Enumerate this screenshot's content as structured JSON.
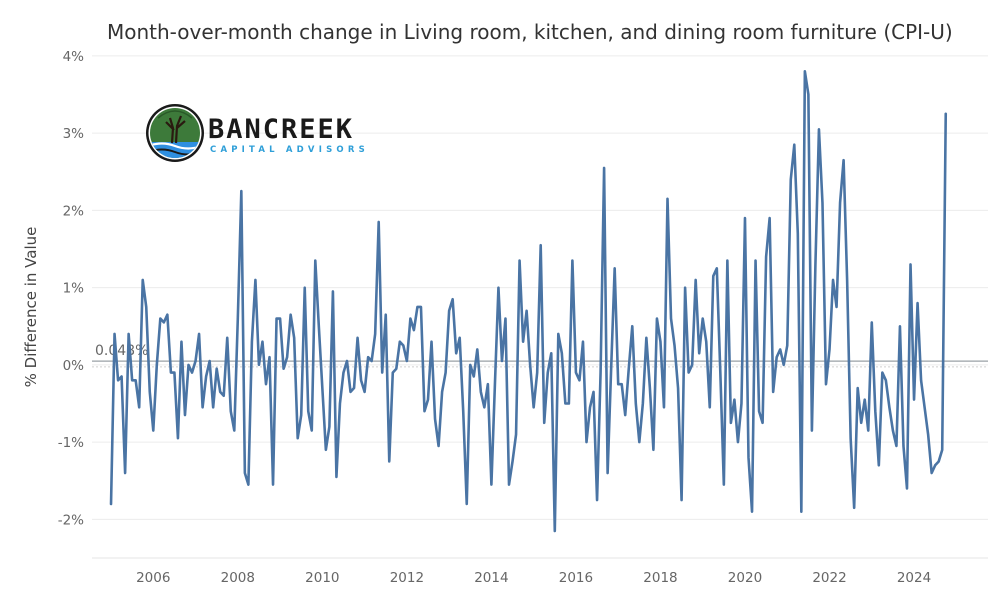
{
  "logo": {
    "name": "BANCREEK",
    "tagline": "CAPITAL ADVISORS"
  },
  "colors": {
    "line": "#4a74a4",
    "reference_line": "#9aa0a6",
    "logo_green": "#3d7a3a",
    "logo_blue": "#2f8fe0"
  },
  "chart_data": {
    "type": "line",
    "title": "Month-over-month change in Living room, kitchen, and dining room furniture (CPI-U)",
    "ylabel": "% Difference in Value",
    "xlabel": "",
    "ylim": [
      -2.5,
      4.05
    ],
    "xlim": [
      2004.55,
      2025.75
    ],
    "yticks": [
      -2,
      -1,
      0,
      1,
      2,
      3,
      4
    ],
    "ytick_labels": [
      "-2%",
      "-1%",
      "0%",
      "1%",
      "2%",
      "3%",
      "4%"
    ],
    "xticks": [
      2006,
      2008,
      2010,
      2012,
      2014,
      2016,
      2018,
      2020,
      2022,
      2024
    ],
    "xtick_labels": [
      "2006",
      "2008",
      "2010",
      "2012",
      "2014",
      "2016",
      "2018",
      "2020",
      "2022",
      "2024"
    ],
    "reference_line": {
      "value": 0.048,
      "label": "0.048%"
    },
    "grid": "horizontal",
    "legend": "none",
    "start": "2005-01",
    "frequency": "monthly",
    "series": [
      {
        "values": [
          -1.8,
          0.4,
          -0.2,
          -0.15,
          -1.4,
          0.4,
          -0.2,
          -0.2,
          -0.55,
          1.1,
          0.75,
          -0.35,
          -0.85,
          0.0,
          0.6,
          0.55,
          0.65,
          -0.1,
          -0.1,
          -0.95,
          0.3,
          -0.65,
          0.0,
          -0.1,
          0.05,
          0.4,
          -0.55,
          -0.15,
          0.05,
          -0.55,
          -0.05,
          -0.35,
          -0.4,
          0.35,
          -0.6,
          -0.85,
          0.6,
          2.25,
          -1.4,
          -1.55,
          0.3,
          1.1,
          0.0,
          0.3,
          -0.25,
          0.1,
          -1.55,
          0.6,
          0.6,
          -0.05,
          0.1,
          0.65,
          0.35,
          -0.95,
          -0.65,
          1.0,
          -0.6,
          -0.85,
          1.35,
          0.5,
          -0.3,
          -1.1,
          -0.8,
          0.95,
          -1.45,
          -0.5,
          -0.1,
          0.05,
          -0.35,
          -0.3,
          0.35,
          -0.2,
          -0.35,
          0.1,
          0.05,
          0.4,
          1.85,
          -0.1,
          0.65,
          -1.25,
          -0.1,
          -0.05,
          0.3,
          0.25,
          0.05,
          0.6,
          0.45,
          0.75,
          0.75,
          -0.6,
          -0.45,
          0.3,
          -0.7,
          -1.05,
          -0.35,
          -0.1,
          0.7,
          0.85,
          0.15,
          0.35,
          -0.6,
          -1.8,
          0.0,
          -0.15,
          0.2,
          -0.35,
          -0.55,
          -0.25,
          -1.55,
          -0.25,
          1.0,
          0.05,
          0.6,
          -1.55,
          -1.25,
          -0.9,
          1.35,
          0.3,
          0.7,
          0.0,
          -0.55,
          -0.1,
          1.55,
          -0.75,
          -0.1,
          0.15,
          -2.15,
          0.4,
          0.15,
          -0.5,
          -0.5,
          1.35,
          -0.1,
          -0.2,
          0.3,
          -1.0,
          -0.55,
          -0.35,
          -1.75,
          -0.1,
          2.55,
          -1.4,
          -0.05,
          1.25,
          -0.25,
          -0.25,
          -0.65,
          -0.05,
          0.5,
          -0.5,
          -1.0,
          -0.5,
          0.35,
          -0.3,
          -1.1,
          0.6,
          0.3,
          -0.55,
          2.15,
          0.6,
          0.25,
          -0.3,
          -1.75,
          1.0,
          -0.1,
          0.0,
          1.1,
          0.15,
          0.6,
          0.3,
          -0.55,
          1.15,
          1.25,
          -0.1,
          -1.55,
          1.35,
          -0.75,
          -0.45,
          -1.0,
          -0.5,
          1.9,
          -1.2,
          -1.9,
          1.35,
          -0.6,
          -0.75,
          1.4,
          1.9,
          -0.35,
          0.1,
          0.2,
          0.0,
          0.25,
          2.4,
          2.85,
          1.7,
          -1.9,
          3.8,
          3.5,
          -0.85,
          1.3,
          3.05,
          2.1,
          -0.25,
          0.2,
          1.1,
          0.75,
          2.1,
          2.65,
          1.1,
          -0.95,
          -1.85,
          -0.3,
          -0.75,
          -0.45,
          -0.85,
          0.55,
          -0.6,
          -1.3,
          -0.1,
          -0.2,
          -0.55,
          -0.85,
          -1.05,
          0.5,
          -1.05,
          -1.6,
          1.3,
          -0.45,
          0.8,
          -0.2,
          -0.55,
          -0.9,
          -1.4,
          -1.3,
          -1.25,
          -1.1,
          3.25
        ]
      }
    ]
  }
}
